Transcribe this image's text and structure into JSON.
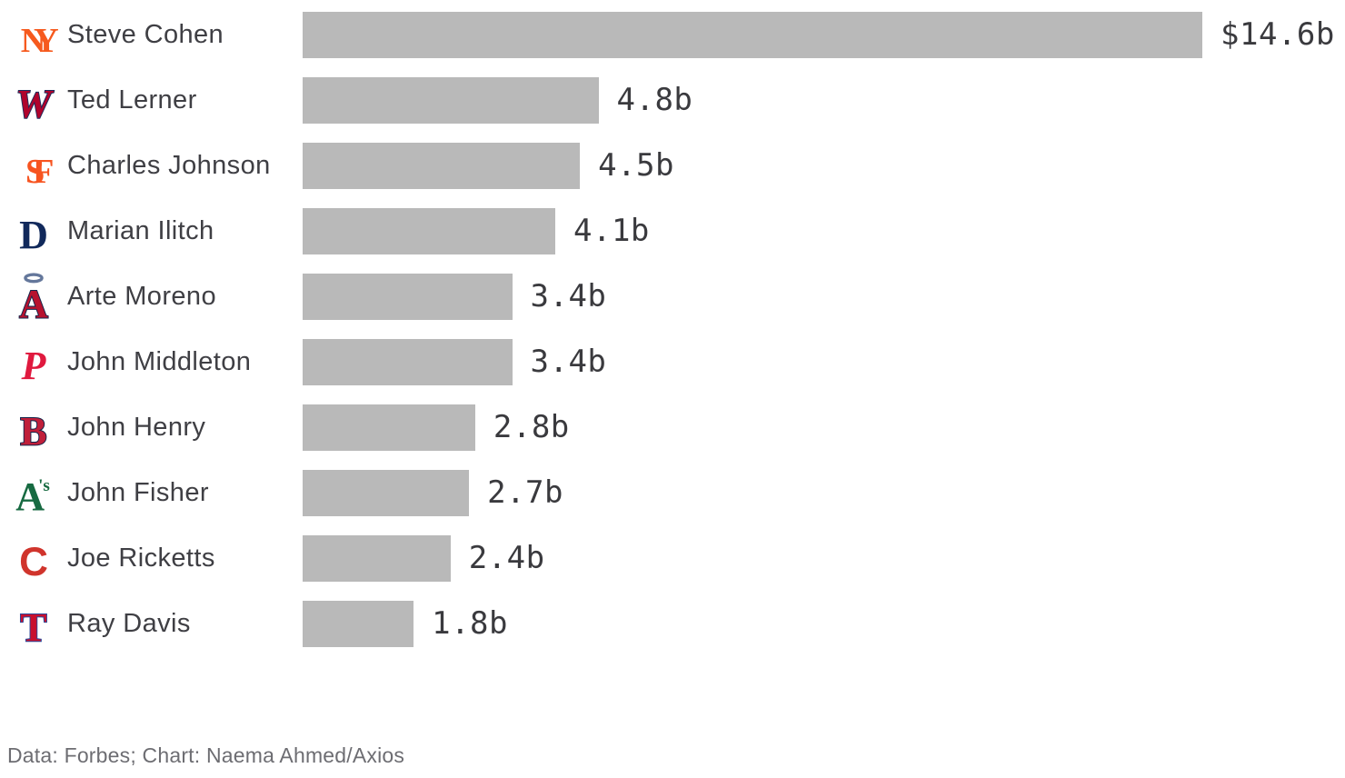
{
  "chart_data": {
    "type": "bar",
    "orientation": "horizontal",
    "title": "",
    "unit": "billions of US dollars",
    "bar_color": "#b9b9b9",
    "value_text_color": "#3a3a3e",
    "name_text_color": "#3f3f44",
    "xlim": [
      0,
      14.6
    ],
    "grid": false,
    "legend": false,
    "categories": [
      "Steve Cohen",
      "Ted Lerner",
      "Charles Johnson",
      "Marian Ilitch",
      "Arte Moreno",
      "John Middleton",
      "John Henry",
      "John Fisher",
      "Joe Ricketts",
      "Ray Davis"
    ],
    "values": [
      14.6,
      4.8,
      4.5,
      4.1,
      3.4,
      3.4,
      2.8,
      2.7,
      2.4,
      1.8
    ],
    "rows": [
      {
        "owner": "Steve Cohen",
        "team": "New York Mets",
        "value": 14.6,
        "label": "$14.6b",
        "logo": {
          "icon": "mets-logo-icon",
          "glyph": "NY",
          "fill": "#f65a1e",
          "stroke": "",
          "serif": true,
          "italic": false,
          "overlap": true,
          "halo": false,
          "suffix": ""
        }
      },
      {
        "owner": "Ted Lerner",
        "team": "Washington Nationals",
        "value": 4.8,
        "label": "4.8b",
        "logo": {
          "icon": "nationals-logo-icon",
          "glyph": "W",
          "fill": "#b0032c",
          "stroke": "#1c2d5c",
          "serif": true,
          "italic": true,
          "overlap": false,
          "halo": false,
          "suffix": ""
        }
      },
      {
        "owner": "Charles Johnson",
        "team": "San Francisco Giants",
        "value": 4.5,
        "label": "4.5b",
        "logo": {
          "icon": "giants-logo-icon",
          "glyph": "SF",
          "fill": "#f75420",
          "stroke": "",
          "serif": true,
          "italic": false,
          "overlap": true,
          "halo": false,
          "suffix": ""
        }
      },
      {
        "owner": "Marian Ilitch",
        "team": "Detroit Tigers",
        "value": 4.1,
        "label": "4.1b",
        "logo": {
          "icon": "tigers-logo-icon",
          "glyph": "D",
          "fill": "#11295b",
          "stroke": "",
          "serif": true,
          "italic": false,
          "overlap": false,
          "halo": false,
          "suffix": ""
        }
      },
      {
        "owner": "Arte Moreno",
        "team": "Los Angeles Angels",
        "value": 3.4,
        "label": "3.4b",
        "logo": {
          "icon": "angels-logo-icon",
          "glyph": "A",
          "fill": "#b7122f",
          "stroke": "#12264c",
          "serif": true,
          "italic": false,
          "overlap": false,
          "halo": true,
          "suffix": ""
        }
      },
      {
        "owner": "John Middleton",
        "team": "Philadelphia Phillies",
        "value": 3.4,
        "label": "3.4b",
        "logo": {
          "icon": "phillies-logo-icon",
          "glyph": "P",
          "fill": "#e0193e",
          "stroke": "",
          "serif": true,
          "italic": true,
          "overlap": false,
          "halo": false,
          "suffix": ""
        }
      },
      {
        "owner": "John Henry",
        "team": "Boston Red Sox",
        "value": 2.8,
        "label": "2.8b",
        "logo": {
          "icon": "redsox-logo-icon",
          "glyph": "B",
          "fill": "#c01f3a",
          "stroke": "#11254a",
          "serif": true,
          "italic": false,
          "overlap": false,
          "halo": false,
          "suffix": ""
        }
      },
      {
        "owner": "John Fisher",
        "team": "Oakland Athletics",
        "value": 2.7,
        "label": "2.7b",
        "logo": {
          "icon": "athletics-logo-icon",
          "glyph": "A",
          "fill": "#176a41",
          "stroke": "",
          "serif": true,
          "italic": false,
          "overlap": false,
          "halo": false,
          "suffix": "'s"
        }
      },
      {
        "owner": "Joe Ricketts",
        "team": "Chicago Cubs",
        "value": 2.4,
        "label": "2.4b",
        "logo": {
          "icon": "cubs-logo-icon",
          "glyph": "C",
          "fill": "#d0342c",
          "stroke": "",
          "serif": false,
          "italic": false,
          "overlap": false,
          "halo": false,
          "suffix": ""
        }
      },
      {
        "owner": "Ray Davis",
        "team": "Texas Rangers",
        "value": 1.8,
        "label": "1.8b",
        "logo": {
          "icon": "rangers-logo-icon",
          "glyph": "T",
          "fill": "#c8102e",
          "stroke": "#2b4a9b",
          "serif": true,
          "italic": false,
          "overlap": false,
          "halo": false,
          "suffix": ""
        }
      }
    ]
  },
  "footer": {
    "text": "Data: Forbes; Chart: Naema Ahmed/Axios"
  }
}
